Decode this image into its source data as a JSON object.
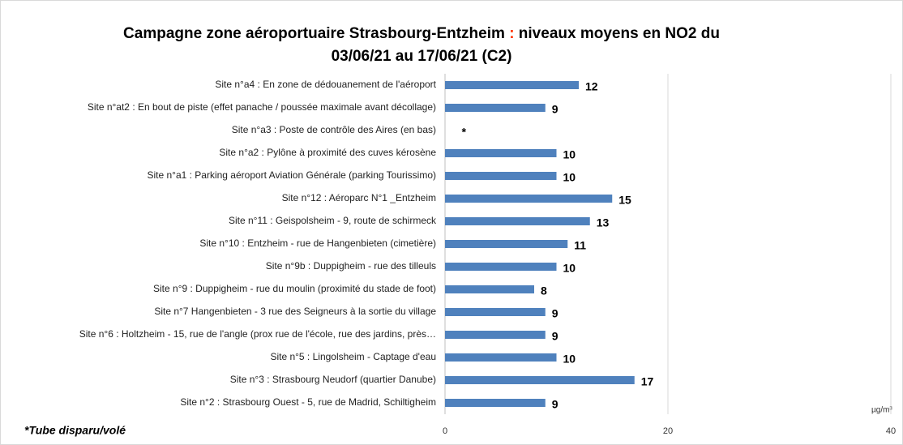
{
  "chart_data": {
    "type": "bar",
    "orientation": "horizontal",
    "title_parts": [
      "Campagne zone aéroportuaire Strasbourg-Entzheim",
      ":",
      "niveaux moyens en NO2 du",
      "03/06/21 au 17/06/21 (C2)"
    ],
    "title_colors": [
      "#000000",
      "#ff3300",
      "#000000",
      "#000000"
    ],
    "categories": [
      "Site n°a4 : En zone de dédouanement de l'aéroport",
      "Site n°at2 : En bout de piste (effet panache / poussée maximale avant décollage)",
      "Site n°a3 : Poste de contrôle des Aires (en bas)",
      "Site n°a2 : Pylône à proximité des cuves kérosène",
      "Site n°a1 : Parking aéroport Aviation Générale (parking Tourissimo)",
      "Site n°12 : Aéroparc N°1 _Entzheim",
      "Site n°11 : Geispolsheim - 9, route de schirmeck",
      "Site n°10 : Entzheim - rue de Hangenbieten (cimetière)",
      "Site n°9b : Duppigheim - rue des tilleuls",
      "Site n°9 : Duppigheim - rue du moulin (proximité du stade de foot)",
      "Site n°7  Hangenbieten - 3 rue des Seigneurs à la sortie du village",
      "Site n°6 : Holtzheim - 15, rue de l'angle (prox rue de l'école, rue des jardins, près…",
      "Site n°5 : Lingolsheim - Captage d'eau",
      "Site n°3 : Strasbourg Neudorf (quartier Danube)",
      "Site n°2 : Strasbourg Ouest - 5, rue de Madrid, Schiltigheim"
    ],
    "values": [
      12,
      9,
      null,
      10,
      10,
      15,
      13,
      11,
      10,
      8,
      9,
      9,
      10,
      17,
      9
    ],
    "value_labels": [
      "12",
      "9",
      "*",
      "10",
      "10",
      "15",
      "13",
      "11",
      "10",
      "8",
      "9",
      "9",
      "10",
      "17",
      "9"
    ],
    "color": "#4f81bd",
    "xlim": [
      0,
      40
    ],
    "xticks": [
      0,
      20,
      40
    ],
    "grid": true,
    "unit": "µg/m³",
    "footnote": "*Tube disparu/volé"
  }
}
